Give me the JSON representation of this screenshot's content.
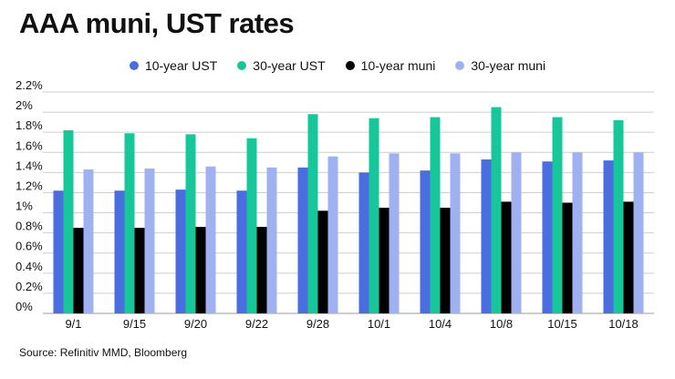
{
  "header": {
    "title": "AAA muni, UST rates"
  },
  "footer": {
    "source": "Source: Refinitiv MMD, Bloomberg"
  },
  "chart_data": {
    "type": "bar",
    "title": "AAA muni, UST rates",
    "xlabel": "",
    "ylabel": "",
    "categories": [
      "9/1",
      "9/15",
      "9/20",
      "9/22",
      "9/28",
      "10/1",
      "10/4",
      "10/8",
      "10/15",
      "10/18"
    ],
    "y_ticks": [
      "0%",
      "0.2%",
      "0.4%",
      "0.6%",
      "0.8%",
      "1%",
      "1.2%",
      "1.4%",
      "1.6%",
      "1.8%",
      "2%",
      "2.2%"
    ],
    "ylim": [
      0,
      2.2
    ],
    "grid": true,
    "legend_position": "top-center",
    "series": [
      {
        "name": "10-year UST",
        "color": "#4a6ee0",
        "values": [
          1.22,
          1.22,
          1.23,
          1.22,
          1.45,
          1.4,
          1.42,
          1.53,
          1.51,
          1.52
        ]
      },
      {
        "name": "30-year UST",
        "color": "#16c79a",
        "values": [
          1.82,
          1.79,
          1.78,
          1.74,
          1.98,
          1.94,
          1.95,
          2.05,
          1.95,
          1.92
        ]
      },
      {
        "name": "10-year muni",
        "color": "#000000",
        "values": [
          0.85,
          0.85,
          0.86,
          0.86,
          1.02,
          1.05,
          1.05,
          1.11,
          1.1,
          1.11
        ]
      },
      {
        "name": "30-year muni",
        "color": "#9fb1f0",
        "values": [
          1.43,
          1.44,
          1.46,
          1.45,
          1.56,
          1.59,
          1.59,
          1.6,
          1.6,
          1.6
        ]
      }
    ]
  }
}
